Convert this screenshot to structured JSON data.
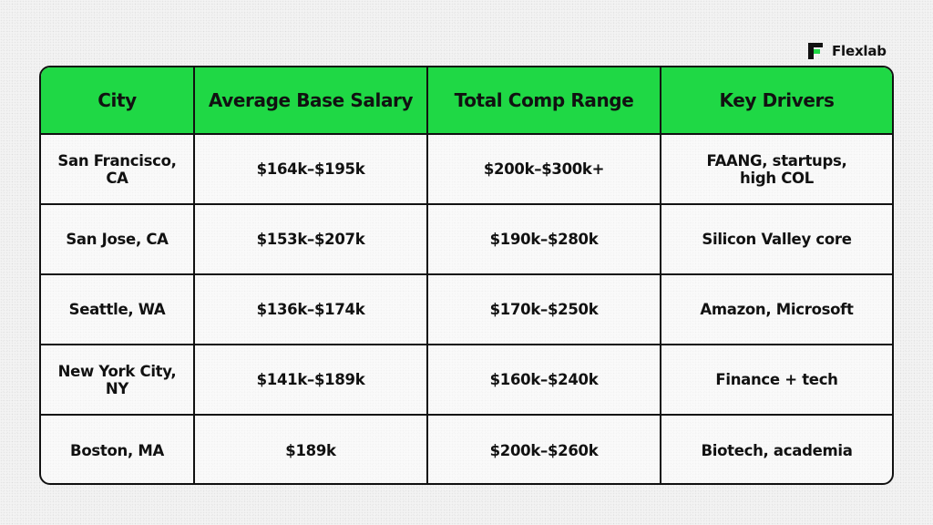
{
  "brand": {
    "name": "Flexlab",
    "icon": "flexlab-logo-icon",
    "accent_color": "#1fd845"
  },
  "table": {
    "header_color": "#1fd845",
    "columns": [
      "City",
      "Average Base Salary",
      "Total Comp Range",
      "Key Drivers"
    ],
    "rows": [
      {
        "city": "San Francisco, CA",
        "base": "$164k–$195k",
        "total": "$200k–$300k+",
        "drivers": "FAANG, startups, high COL"
      },
      {
        "city": "San Jose, CA",
        "base": "$153k–$207k",
        "total": "$190k–$280k",
        "drivers": "Silicon Valley core"
      },
      {
        "city": "Seattle, WA",
        "base": "$136k–$174k",
        "total": "$170k–$250k",
        "drivers": "Amazon, Microsoft"
      },
      {
        "city": "New York City, NY",
        "base": "$141k–$189k",
        "total": "$160k–$240k",
        "drivers": "Finance + tech"
      },
      {
        "city": "Boston, MA",
        "base": "$189k",
        "total": "$200k–$260k",
        "drivers": "Biotech, academia"
      }
    ]
  }
}
